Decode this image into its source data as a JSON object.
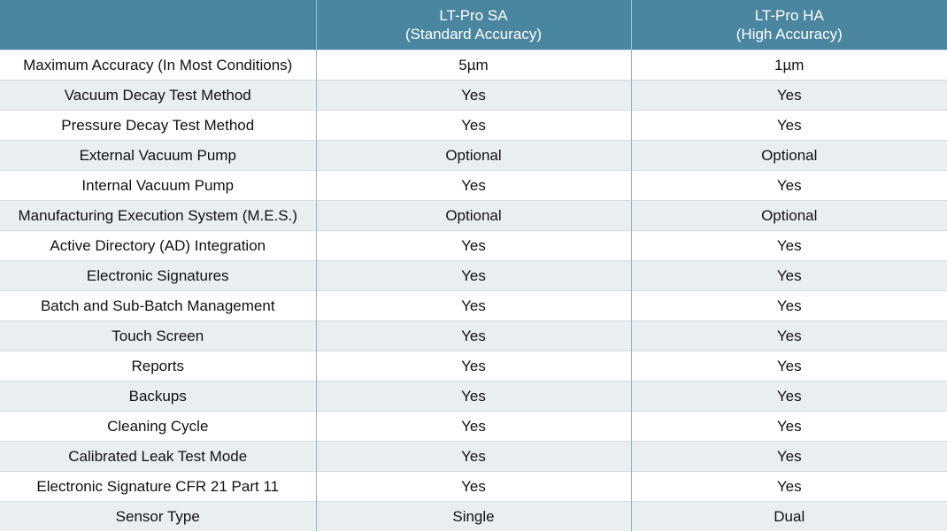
{
  "header": {
    "blank": "",
    "col1_line1": "LT-Pro SA",
    "col1_line2": "(Standard Accuracy)",
    "col2_line1": "LT-Pro HA",
    "col2_line2": "(High Accuracy)"
  },
  "rows": [
    {
      "feature": "Maximum Accuracy (In Most Conditions)",
      "sa": "5µm",
      "ha": "1µm"
    },
    {
      "feature": "Vacuum Decay Test Method",
      "sa": "Yes",
      "ha": "Yes"
    },
    {
      "feature": "Pressure Decay Test Method",
      "sa": "Yes",
      "ha": "Yes"
    },
    {
      "feature": "External Vacuum Pump",
      "sa": "Optional",
      "ha": "Optional"
    },
    {
      "feature": "Internal Vacuum Pump",
      "sa": "Yes",
      "ha": "Yes"
    },
    {
      "feature": "Manufacturing Execution System (M.E.S.)",
      "sa": "Optional",
      "ha": "Optional"
    },
    {
      "feature": "Active Directory (AD) Integration",
      "sa": "Yes",
      "ha": "Yes"
    },
    {
      "feature": "Electronic Signatures",
      "sa": "Yes",
      "ha": "Yes"
    },
    {
      "feature": "Batch and Sub-Batch Management",
      "sa": "Yes",
      "ha": "Yes"
    },
    {
      "feature": "Touch Screen",
      "sa": "Yes",
      "ha": "Yes"
    },
    {
      "feature": "Reports",
      "sa": "Yes",
      "ha": "Yes"
    },
    {
      "feature": "Backups",
      "sa": "Yes",
      "ha": "Yes"
    },
    {
      "feature": "Cleaning Cycle",
      "sa": "Yes",
      "ha": "Yes"
    },
    {
      "feature": "Calibrated Leak Test Mode",
      "sa": "Yes",
      "ha": "Yes"
    },
    {
      "feature": "Electronic Signature CFR 21 Part 11",
      "sa": "Yes",
      "ha": "Yes"
    },
    {
      "feature": "Sensor Type",
      "sa": "Single",
      "ha": "Dual"
    }
  ],
  "colors": {
    "header_bg": "#4b86a0",
    "header_text": "#ffffff",
    "row_alt_bg": "#e9eef1",
    "row_bg": "#ffffff"
  }
}
